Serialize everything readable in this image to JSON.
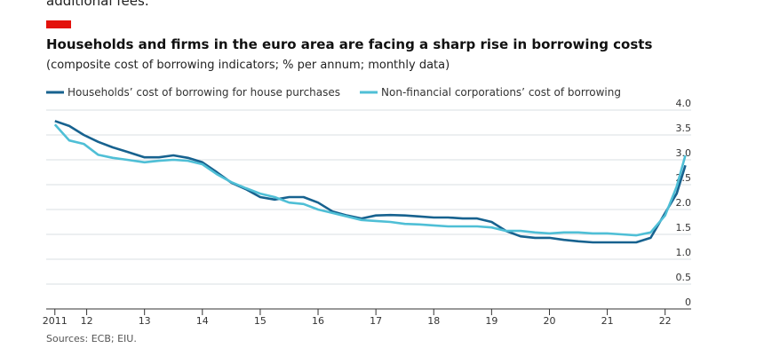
{
  "chart_data": {
    "type": "line",
    "text_above": "additional fees.",
    "title": "Households and firms in the euro area are facing a sharp rise in borrowing costs",
    "subtitle": "(composite cost of borrowing indicators; % per annum; monthly data)",
    "source": "Sources: ECB; EIU.",
    "x": [
      2011.45,
      2011.7,
      2011.95,
      2012.2,
      2012.45,
      2012.7,
      2013.0,
      2013.25,
      2013.5,
      2013.75,
      2014.0,
      2014.25,
      2014.5,
      2014.75,
      2015.0,
      2015.25,
      2015.5,
      2015.75,
      2016.0,
      2016.25,
      2016.5,
      2016.75,
      2017.0,
      2017.25,
      2017.5,
      2017.75,
      2018.0,
      2018.25,
      2018.5,
      2018.75,
      2019.0,
      2019.25,
      2019.5,
      2019.75,
      2020.0,
      2020.25,
      2020.5,
      2020.75,
      2021.0,
      2021.25,
      2021.5,
      2021.75,
      2022.0,
      2022.2,
      2022.35
    ],
    "series": [
      {
        "name": "Households’ cost of borrowing for house purchases",
        "color": "#17628f",
        "values": [
          3.78,
          3.68,
          3.5,
          3.36,
          3.25,
          3.16,
          3.05,
          3.05,
          3.09,
          3.04,
          2.95,
          2.75,
          2.54,
          2.41,
          2.25,
          2.2,
          2.25,
          2.25,
          2.14,
          1.96,
          1.88,
          1.82,
          1.88,
          1.89,
          1.88,
          1.86,
          1.84,
          1.84,
          1.82,
          1.82,
          1.75,
          1.57,
          1.46,
          1.43,
          1.43,
          1.39,
          1.36,
          1.34,
          1.34,
          1.34,
          1.34,
          1.43,
          1.93,
          2.32,
          2.89
        ]
      },
      {
        "name": "Non-financial corporations’ cost of borrowing",
        "color": "#4fbfd6",
        "values": [
          3.71,
          3.39,
          3.32,
          3.1,
          3.04,
          3.0,
          2.95,
          2.98,
          3.0,
          2.98,
          2.91,
          2.71,
          2.55,
          2.43,
          2.32,
          2.25,
          2.14,
          2.11,
          2.0,
          1.93,
          1.86,
          1.79,
          1.77,
          1.75,
          1.71,
          1.7,
          1.68,
          1.66,
          1.66,
          1.66,
          1.64,
          1.57,
          1.57,
          1.54,
          1.52,
          1.54,
          1.54,
          1.52,
          1.52,
          1.5,
          1.48,
          1.54,
          1.88,
          2.46,
          3.09
        ]
      }
    ],
    "xlim": [
      2011.3,
      2022.45
    ],
    "xticks": [
      {
        "value": 2011.45,
        "label": "2011"
      },
      {
        "value": 2012,
        "label": "12"
      },
      {
        "value": 2013,
        "label": "13"
      },
      {
        "value": 2014,
        "label": "14"
      },
      {
        "value": 2015,
        "label": "15"
      },
      {
        "value": 2016,
        "label": "16"
      },
      {
        "value": 2017,
        "label": "17"
      },
      {
        "value": 2018,
        "label": "18"
      },
      {
        "value": 2019,
        "label": "19"
      },
      {
        "value": 2020,
        "label": "20"
      },
      {
        "value": 2021,
        "label": "21"
      },
      {
        "value": 2022,
        "label": "22"
      }
    ],
    "ylim": [
      0,
      4
    ],
    "yticks": [
      0,
      {
        "value": 0.5,
        "label": "0.5"
      },
      {
        "value": 1,
        "label": "1.0"
      },
      {
        "value": 1.5,
        "label": "1.5"
      },
      {
        "value": 2,
        "label": "2.0"
      },
      {
        "value": 2.5,
        "label": "2.5"
      },
      {
        "value": 3,
        "label": "3.0"
      },
      {
        "value": 3.5,
        "label": "3.5"
      },
      {
        "value": 4,
        "label": "4.0"
      }
    ],
    "grid": true,
    "legend": "top-left"
  }
}
